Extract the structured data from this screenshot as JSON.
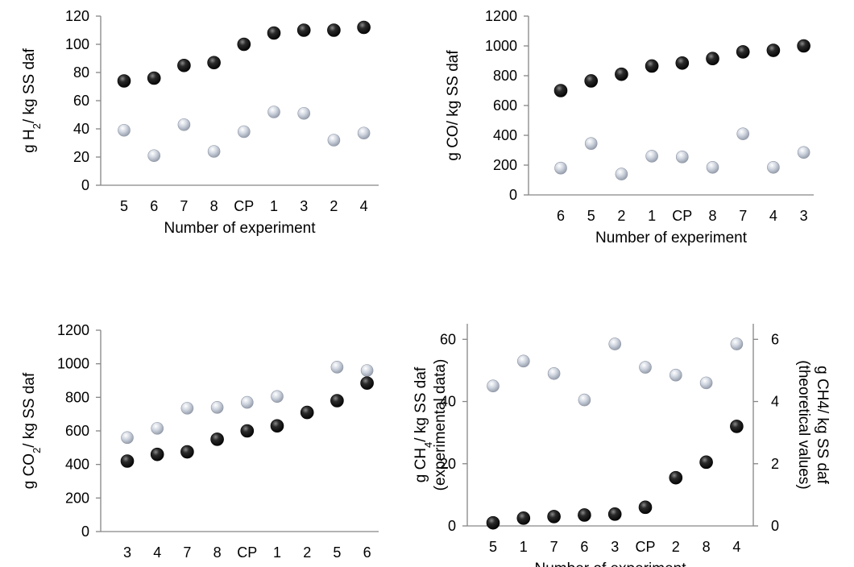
{
  "chart_data": [
    {
      "type": "scatter",
      "panel": "top-left",
      "xlabel": "Number of experiment",
      "ylabel_parts": [
        "g H",
        "2",
        "/ kg SS daf"
      ],
      "categories": [
        "5",
        "6",
        "7",
        "8",
        "CP",
        "1",
        "3",
        "2",
        "4"
      ],
      "ylim": [
        0,
        120
      ],
      "yticks": [
        "0",
        "20",
        "40",
        "60",
        "80",
        "100",
        "120"
      ],
      "grid": false,
      "series": [
        {
          "color": "#111111",
          "values": [
            74,
            76,
            85,
            87,
            100,
            108,
            110,
            110,
            112
          ]
        },
        {
          "color": "#bfc6d3",
          "values": [
            39,
            21,
            43,
            24,
            38,
            52,
            51,
            32,
            37
          ]
        }
      ]
    },
    {
      "type": "scatter",
      "panel": "top-right",
      "xlabel": "Number of experiment",
      "ylabel_parts": [
        "g CO/ kg SS daf"
      ],
      "categories": [
        "6",
        "5",
        "2",
        "1",
        "CP",
        "8",
        "7",
        "4",
        "3"
      ],
      "ylim": [
        0,
        1200
      ],
      "yticks": [
        "0",
        "200",
        "400",
        "600",
        "800",
        "1000",
        "1200"
      ],
      "grid": false,
      "series": [
        {
          "color": "#111111",
          "values": [
            700,
            765,
            810,
            865,
            885,
            915,
            960,
            970,
            1000
          ]
        },
        {
          "color": "#bfc6d3",
          "values": [
            180,
            345,
            140,
            260,
            255,
            185,
            410,
            185,
            285
          ]
        }
      ]
    },
    {
      "type": "scatter",
      "panel": "bottom-left",
      "xlabel": "Number of experiment",
      "ylabel_parts": [
        "g CO",
        "2",
        "/ kg SS daf"
      ],
      "categories": [
        "3",
        "4",
        "7",
        "8",
        "CP",
        "1",
        "2",
        "5",
        "6"
      ],
      "ylim": [
        0,
        1200
      ],
      "yticks": [
        "0",
        "200",
        "400",
        "600",
        "800",
        "1000",
        "1200"
      ],
      "grid": false,
      "series": [
        {
          "color": "#111111",
          "values": [
            420,
            460,
            475,
            550,
            600,
            630,
            710,
            780,
            885
          ]
        },
        {
          "color": "#bfc6d3",
          "values": [
            560,
            615,
            735,
            740,
            770,
            805,
            710,
            980,
            960
          ]
        }
      ]
    },
    {
      "type": "scatter",
      "panel": "bottom-right",
      "xlabel": "Number of experiment",
      "ylabel_parts": [
        "g CH",
        "4",
        "/ kg SS daf"
      ],
      "ylabel2": "(experimental data)",
      "y2label": "g CH4/ kg SS daf",
      "y2label2": "(theoretical values)",
      "categories": [
        "5",
        "1",
        "7",
        "6",
        "3",
        "CP",
        "2",
        "8",
        "4"
      ],
      "ylim": [
        0,
        65
      ],
      "yticks": [
        "0",
        "20",
        "40",
        "60"
      ],
      "y2lim": [
        0,
        6.5
      ],
      "y2ticks": [
        "0",
        "2",
        "4",
        "6"
      ],
      "grid": false,
      "series": [
        {
          "color": "#111111",
          "axis": "left",
          "values": [
            1,
            2.5,
            3,
            3.5,
            3.8,
            6,
            15.5,
            20.5,
            32
          ]
        },
        {
          "color": "#bfc6d3",
          "axis": "right",
          "values": [
            4.5,
            5.3,
            4.9,
            4.05,
            5.85,
            5.1,
            4.85,
            4.6,
            5.85
          ]
        }
      ]
    }
  ]
}
